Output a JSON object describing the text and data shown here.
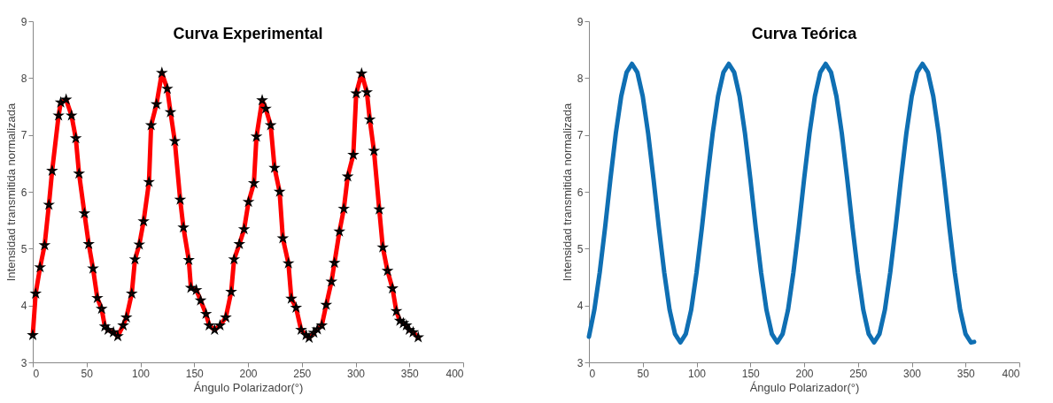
{
  "chart_data": [
    {
      "type": "line",
      "title": "Curva Experimental",
      "xlabel": "Ángulo Polarizador(°)",
      "ylabel": "Intensidad transmitida normalizada",
      "marker": "star",
      "line_style": "solid",
      "grid": false,
      "x": [
        0,
        2.7,
        6.8,
        11,
        15,
        18,
        24,
        26,
        31,
        36,
        40,
        43,
        48,
        52,
        56,
        60,
        64,
        67,
        70,
        75,
        79,
        84,
        87,
        92,
        95,
        99,
        103,
        108,
        110,
        115,
        120,
        125,
        128,
        132,
        137,
        140,
        145,
        147,
        152,
        156,
        161,
        164,
        169,
        174,
        179.4,
        184.4,
        187.1,
        192,
        196.4,
        200.5,
        205.5,
        207.9,
        213.2,
        216.5,
        221.1,
        224.7,
        229.4,
        232.4,
        237.6,
        240.3,
        244.7,
        249.4,
        254,
        256.8,
        261.2,
        264.5,
        268.6,
        272.7,
        277.6,
        280.4,
        285,
        289.1,
        292.7,
        297.9,
        300.6,
        305.6,
        310.5,
        313.2,
        317.1,
        322,
        325.3,
        329.7,
        334.3,
        337.9,
        341.2,
        344.4,
        347.2,
        349.9,
        353.5,
        358.2
      ],
      "series": [
        {
          "color": "#ff0000",
          "values": [
            3.48,
            4.21,
            4.67,
            5.06,
            5.77,
            6.37,
            7.34,
            7.57,
            7.62,
            7.34,
            6.94,
            6.32,
            5.62,
            5.08,
            4.65,
            4.13,
            3.94,
            3.63,
            3.57,
            3.53,
            3.46,
            3.65,
            3.79,
            4.21,
            4.81,
            5.07,
            5.48,
            6.17,
            7.17,
            7.54,
            8.09,
            7.81,
            7.4,
            6.89,
            5.86,
            5.37,
            4.8,
            4.31,
            4.27,
            4.09,
            3.85,
            3.65,
            3.57,
            3.65,
            3.79,
            4.24,
            4.81,
            5.08,
            5.34,
            5.82,
            6.15,
            6.97,
            7.61,
            7.46,
            7.17,
            6.42,
            6.0,
            5.18,
            4.74,
            4.12,
            3.96,
            3.57,
            3.48,
            3.43,
            3.52,
            3.58,
            3.65,
            4.01,
            4.42,
            4.75,
            5.3,
            5.7,
            6.27,
            6.65,
            7.73,
            8.08,
            7.75,
            7.27,
            6.72,
            5.69,
            5.02,
            4.61,
            4.3,
            3.9,
            3.73,
            3.69,
            3.65,
            3.57,
            3.53,
            3.44
          ]
        }
      ],
      "xlim": [
        0,
        400
      ],
      "ylim": [
        3,
        9
      ],
      "xticks": [
        0,
        50,
        100,
        150,
        200,
        250,
        300,
        350,
        400
      ],
      "yticks": [
        3,
        4,
        5,
        6,
        7,
        8,
        9
      ]
    },
    {
      "type": "line",
      "title": "Curva Teórica",
      "xlabel": "Ángulo Polarizador(°)",
      "ylabel": "Intensidad transmitida normalizada",
      "line_style": "solid",
      "grid": false,
      "x": [
        0,
        5,
        10,
        15,
        20,
        25,
        30,
        35,
        40,
        45,
        50,
        55,
        60,
        65,
        70,
        75,
        80,
        85,
        90,
        95,
        100,
        105,
        110,
        115,
        120,
        125,
        130,
        135,
        140,
        145,
        150,
        155,
        160,
        165,
        170,
        175,
        180,
        185,
        190,
        195,
        200,
        205,
        210,
        215,
        220,
        225,
        230,
        235,
        240,
        245,
        250,
        255,
        260,
        265,
        270,
        275,
        280,
        285,
        290,
        295,
        300,
        305,
        310,
        315,
        320,
        325,
        330,
        335,
        340,
        345,
        350,
        355,
        358
      ],
      "series": [
        {
          "color": "#0f6fb3",
          "values": [
            3.45,
            3.92,
            4.58,
            5.37,
            6.23,
            7.03,
            7.68,
            8.1,
            8.25,
            8.1,
            7.68,
            7.03,
            6.23,
            5.37,
            4.58,
            3.92,
            3.5,
            3.35,
            3.5,
            3.92,
            4.58,
            5.37,
            6.23,
            7.03,
            7.68,
            8.1,
            8.25,
            8.1,
            7.68,
            7.03,
            6.23,
            5.37,
            4.58,
            3.92,
            3.5,
            3.35,
            3.5,
            3.92,
            4.58,
            5.37,
            6.23,
            7.03,
            7.68,
            8.1,
            8.25,
            8.1,
            7.68,
            7.03,
            6.23,
            5.37,
            4.58,
            3.92,
            3.5,
            3.35,
            3.5,
            3.92,
            4.58,
            5.37,
            6.23,
            7.03,
            7.68,
            8.1,
            8.25,
            8.1,
            7.68,
            7.03,
            6.23,
            5.37,
            4.58,
            3.92,
            3.5,
            3.35,
            3.36
          ]
        }
      ],
      "xlim": [
        0,
        400
      ],
      "ylim": [
        3,
        9
      ],
      "xticks": [
        0,
        50,
        100,
        150,
        200,
        250,
        300,
        350,
        400
      ],
      "yticks": [
        3,
        4,
        5,
        6,
        7,
        8,
        9
      ]
    }
  ]
}
